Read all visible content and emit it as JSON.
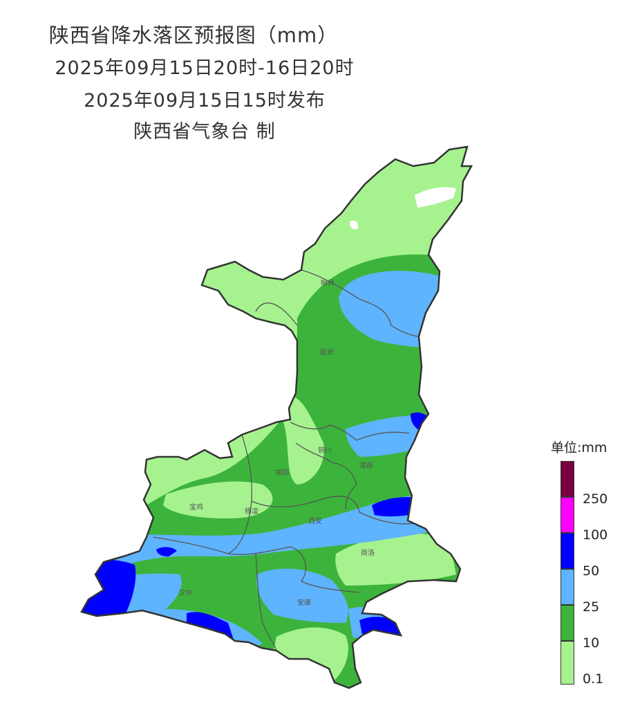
{
  "header": {
    "title": "陕西省降水落区预报图（mm）",
    "period": "2025年09月15日20时-16日20时",
    "issued": "2025年09月15日15时发布",
    "issuer": "陕西省气象台 制"
  },
  "cities": [
    "榆林",
    "延安",
    "铜川",
    "渭南",
    "咸阳",
    "宝鸡",
    "杨凌",
    "西安",
    "商洛",
    "汉中",
    "安康"
  ],
  "legend": {
    "unit": "单位:mm",
    "levels": [
      {
        "label": "250",
        "color": "#7a0040"
      },
      {
        "label": "100",
        "color": "#ff00ff"
      },
      {
        "label": "50",
        "color": "#0000ff"
      },
      {
        "label": "25",
        "color": "#5fb4ff"
      },
      {
        "label": "10",
        "color": "#3cb43c"
      },
      {
        "label": "0.1",
        "color": "#a6f28f"
      }
    ]
  }
}
